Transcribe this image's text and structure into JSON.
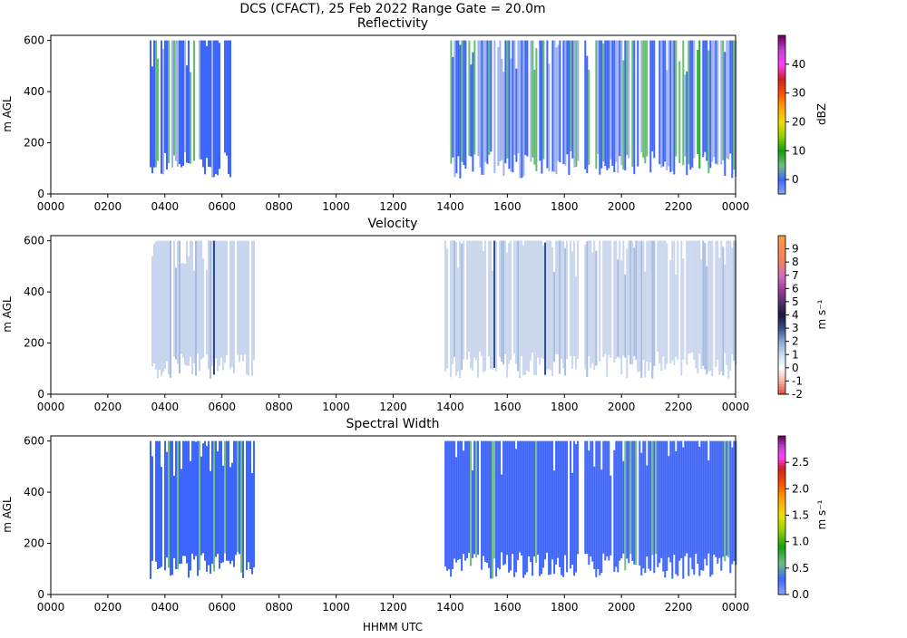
{
  "suptitle": "DCS (CFACT), 25 Feb 2022 Range Gate = 20.0m",
  "colors": {
    "reflectivity_fill_dark": "#3d66ff",
    "reflectivity_fill_light": "#9fb4ef",
    "reflectivity_green": "#63c06a",
    "reflectivity_bright_green": "#1fb41f",
    "velocity_fill": "#c9d6ef",
    "velocity_dark": "#2b4a8c",
    "width_fill": "#3d66ff",
    "width_green": "#6fbf80"
  },
  "chart_data": [
    {
      "type": "heatmap",
      "title": "Reflectivity",
      "xlabel": "",
      "ylabel": "m AGL",
      "x_ticks": [
        "0000",
        "0200",
        "0400",
        "0600",
        "0800",
        "1000",
        "1200",
        "1400",
        "1600",
        "1800",
        "2000",
        "2200",
        "0000"
      ],
      "xlim_hours": [
        0,
        24
      ],
      "y_ticks": [
        "0",
        "200",
        "400",
        "600"
      ],
      "ylim": [
        0,
        620
      ],
      "colorbar": {
        "label": "dBZ",
        "range": [
          -5,
          50
        ],
        "ticks": [
          "0",
          "10",
          "20",
          "30",
          "40"
        ],
        "tick_values": [
          0,
          10,
          20,
          30,
          40
        ],
        "stops": [
          {
            "v": -5,
            "c": "#8ea6ff"
          },
          {
            "v": 0,
            "c": "#3d66ff"
          },
          {
            "v": 5,
            "c": "#6fbf80"
          },
          {
            "v": 10,
            "c": "#10a010"
          },
          {
            "v": 15,
            "c": "#8fd000"
          },
          {
            "v": 20,
            "c": "#f0e000"
          },
          {
            "v": 25,
            "c": "#ffa500"
          },
          {
            "v": 30,
            "c": "#ff5000"
          },
          {
            "v": 35,
            "c": "#d02020"
          },
          {
            "v": 40,
            "c": "#ff40ff"
          },
          {
            "v": 45,
            "c": "#c040d0"
          },
          {
            "v": 50,
            "c": "#6a0060"
          }
        ]
      },
      "cloud_segments": [
        {
          "start": 3.4,
          "end": 6.3,
          "top": 600,
          "base": 60
        },
        {
          "start": 14.0,
          "end": 18.5,
          "top": 600,
          "base": 60
        },
        {
          "start": 18.7,
          "end": 24.0,
          "top": 600,
          "base": 60
        }
      ]
    },
    {
      "type": "heatmap",
      "title": "Velocity",
      "xlabel": "",
      "ylabel": "m AGL",
      "x_ticks": [
        "0000",
        "0200",
        "0400",
        "0600",
        "0800",
        "1000",
        "1200",
        "1400",
        "1600",
        "1800",
        "2000",
        "2200",
        "0000"
      ],
      "xlim_hours": [
        0,
        24
      ],
      "y_ticks": [
        "0",
        "200",
        "400",
        "600"
      ],
      "ylim": [
        0,
        620
      ],
      "colorbar": {
        "label": "m s⁻¹",
        "range": [
          -2,
          10
        ],
        "ticks": [
          "-2",
          "-1",
          "0",
          "1",
          "2",
          "3",
          "4",
          "5",
          "6",
          "7",
          "8",
          "9"
        ],
        "tick_values": [
          -2,
          -1,
          0,
          1,
          2,
          3,
          4,
          5,
          6,
          7,
          8,
          9
        ],
        "stops": [
          {
            "v": -2,
            "c": "#e8483a"
          },
          {
            "v": -1,
            "c": "#f8b0a0"
          },
          {
            "v": 0,
            "c": "#ffffff"
          },
          {
            "v": 1,
            "c": "#d2dcf0"
          },
          {
            "v": 2,
            "c": "#90a8d8"
          },
          {
            "v": 3,
            "c": "#3a5090"
          },
          {
            "v": 4,
            "c": "#18183a"
          },
          {
            "v": 5,
            "c": "#5a3070"
          },
          {
            "v": 6,
            "c": "#a040a0"
          },
          {
            "v": 7,
            "c": "#d070c0"
          },
          {
            "v": 8,
            "c": "#f08060"
          },
          {
            "v": 10,
            "c": "#ff9a40"
          }
        ]
      },
      "cloud_segments": [
        {
          "start": 3.4,
          "end": 7.1,
          "top": 600,
          "base": 60
        },
        {
          "start": 13.8,
          "end": 18.5,
          "top": 600,
          "base": 60
        },
        {
          "start": 18.7,
          "end": 24.0,
          "top": 600,
          "base": 60
        }
      ]
    },
    {
      "type": "heatmap",
      "title": "Spectral Width",
      "xlabel": "HHMM UTC",
      "ylabel": "m AGL",
      "x_ticks": [
        "0000",
        "0200",
        "0400",
        "0600",
        "0800",
        "1000",
        "1200",
        "1400",
        "1600",
        "1800",
        "2000",
        "2200",
        "0000"
      ],
      "xlim_hours": [
        0,
        24
      ],
      "y_ticks": [
        "0",
        "200",
        "400",
        "600"
      ],
      "ylim": [
        0,
        620
      ],
      "colorbar": {
        "label": "m s⁻¹",
        "range": [
          0,
          3.0
        ],
        "ticks": [
          "0.0",
          "0.5",
          "1.0",
          "1.5",
          "2.0",
          "2.5"
        ],
        "tick_values": [
          0,
          0.5,
          1.0,
          1.5,
          2.0,
          2.5
        ],
        "stops": [
          {
            "v": 0,
            "c": "#8ea6ff"
          },
          {
            "v": 0.3,
            "c": "#3d66ff"
          },
          {
            "v": 0.6,
            "c": "#6fbf80"
          },
          {
            "v": 0.9,
            "c": "#10a010"
          },
          {
            "v": 1.2,
            "c": "#8fd000"
          },
          {
            "v": 1.5,
            "c": "#f0e000"
          },
          {
            "v": 1.8,
            "c": "#ffa500"
          },
          {
            "v": 2.1,
            "c": "#ff5000"
          },
          {
            "v": 2.4,
            "c": "#d02020"
          },
          {
            "v": 2.6,
            "c": "#ff40ff"
          },
          {
            "v": 2.8,
            "c": "#c040d0"
          },
          {
            "v": 3.0,
            "c": "#6a0060"
          }
        ]
      },
      "cloud_segments": [
        {
          "start": 3.4,
          "end": 7.1,
          "top": 600,
          "base": 60
        },
        {
          "start": 13.8,
          "end": 18.5,
          "top": 600,
          "base": 60
        },
        {
          "start": 18.7,
          "end": 24.0,
          "top": 600,
          "base": 60
        }
      ]
    }
  ]
}
